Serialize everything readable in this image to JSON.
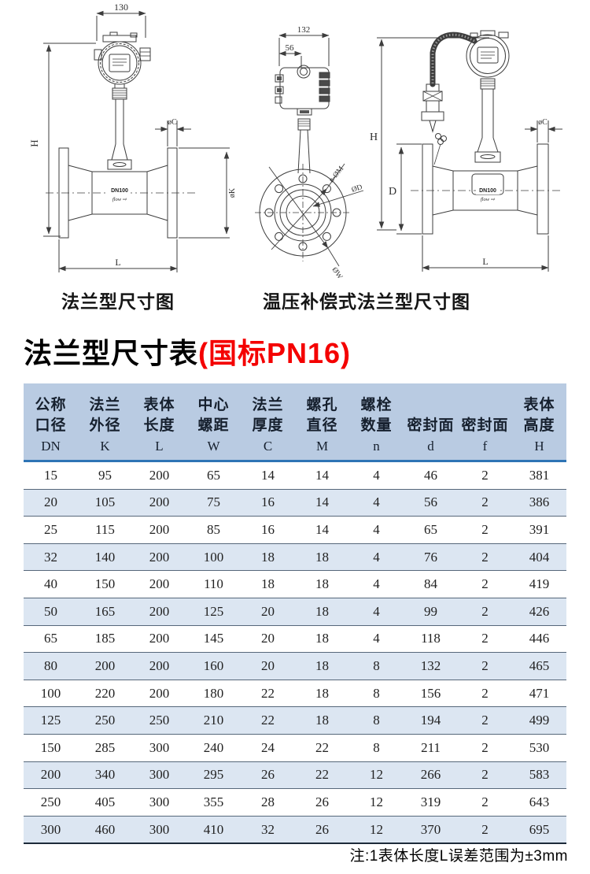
{
  "title": {
    "black": "法兰型尺寸表",
    "red": "(国标PN16)"
  },
  "captions": {
    "left": "法兰型尺寸图",
    "right": "温压补偿式法兰型尺寸图"
  },
  "note": "注:1表体长度L误差范围为±3mm",
  "colors": {
    "header_bg": "#b9cbe2",
    "row_alt_bg": "#dce6f2",
    "accent_line": "#2e74b5",
    "row_divider": "#56677a",
    "title_red": "#f40000"
  },
  "drawing_left": {
    "dim_width": "130",
    "dim_height": "H",
    "dim_flange_thickness": "øC",
    "dim_flange_diameter": "øK",
    "dim_length": "L",
    "body_label": "DN100",
    "flow_label": "flow ⇨"
  },
  "drawing_middle": {
    "dim_width": "132",
    "dim_offset": "56",
    "dim_bolt_holes": "n-ØM",
    "dim_diameter": "ØD",
    "dim_w": "ØW"
  },
  "drawing_right": {
    "dim_height": "H",
    "dim_body_diameter": "D",
    "dim_flange_thickness": "øC",
    "dim_length": "L",
    "body_label": "DN100",
    "flow_label": "flow ⇨"
  },
  "table": {
    "columns": [
      {
        "zh": [
          "公称",
          "口径"
        ],
        "code": "DN"
      },
      {
        "zh": [
          "法兰",
          "外径"
        ],
        "code": "K"
      },
      {
        "zh": [
          "表体",
          "长度"
        ],
        "code": "L"
      },
      {
        "zh": [
          "中心",
          "螺距"
        ],
        "code": "W"
      },
      {
        "zh": [
          "法兰",
          "厚度"
        ],
        "code": "C"
      },
      {
        "zh": [
          "螺孔",
          "直径"
        ],
        "code": "M"
      },
      {
        "zh": [
          "螺栓",
          "数量"
        ],
        "code": "n"
      },
      {
        "zh": [
          "密封面"
        ],
        "code": "d"
      },
      {
        "zh": [
          "密封面"
        ],
        "code": "f"
      },
      {
        "zh": [
          "表体",
          "高度"
        ],
        "code": "H"
      }
    ],
    "rows": [
      [
        "15",
        "95",
        "200",
        "65",
        "14",
        "14",
        "4",
        "46",
        "2",
        "381"
      ],
      [
        "20",
        "105",
        "200",
        "75",
        "16",
        "14",
        "4",
        "56",
        "2",
        "386"
      ],
      [
        "25",
        "115",
        "200",
        "85",
        "16",
        "14",
        "4",
        "65",
        "2",
        "391"
      ],
      [
        "32",
        "140",
        "200",
        "100",
        "18",
        "18",
        "4",
        "76",
        "2",
        "404"
      ],
      [
        "40",
        "150",
        "200",
        "110",
        "18",
        "18",
        "4",
        "84",
        "2",
        "419"
      ],
      [
        "50",
        "165",
        "200",
        "125",
        "20",
        "18",
        "4",
        "99",
        "2",
        "426"
      ],
      [
        "65",
        "185",
        "200",
        "145",
        "20",
        "18",
        "4",
        "118",
        "2",
        "446"
      ],
      [
        "80",
        "200",
        "200",
        "160",
        "20",
        "18",
        "8",
        "132",
        "2",
        "465"
      ],
      [
        "100",
        "220",
        "200",
        "180",
        "22",
        "18",
        "8",
        "156",
        "2",
        "471"
      ],
      [
        "125",
        "250",
        "250",
        "210",
        "22",
        "18",
        "8",
        "194",
        "2",
        "499"
      ],
      [
        "150",
        "285",
        "300",
        "240",
        "24",
        "22",
        "8",
        "211",
        "2",
        "530"
      ],
      [
        "200",
        "340",
        "300",
        "295",
        "26",
        "22",
        "12",
        "266",
        "2",
        "583"
      ],
      [
        "250",
        "405",
        "300",
        "355",
        "28",
        "26",
        "12",
        "319",
        "2",
        "643"
      ],
      [
        "300",
        "460",
        "300",
        "410",
        "32",
        "26",
        "12",
        "370",
        "2",
        "695"
      ]
    ]
  }
}
